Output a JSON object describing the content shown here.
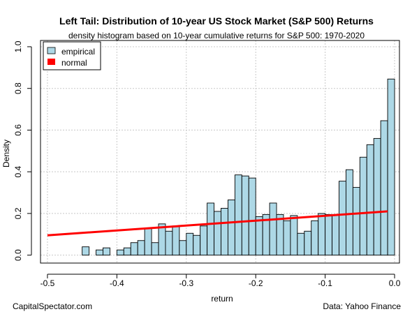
{
  "chart_data": {
    "type": "bar",
    "title": "Left Tail: Distribution of 10-year US Stock Market (S&P 500) Returns",
    "subtitle": "density histogram based on 10-year cumulative returns for S&P 500: 1970-2020",
    "xlabel": "return",
    "ylabel": "Density",
    "xlim": [
      -0.5,
      0.0
    ],
    "ylim": [
      0.0,
      1.0
    ],
    "x_ticks": [
      -0.5,
      -0.4,
      -0.3,
      -0.2,
      -0.1,
      0.0
    ],
    "x_tick_labels": [
      "-0.5",
      "-0.4",
      "-0.3",
      "-0.2",
      "-0.1",
      "0.0"
    ],
    "y_ticks": [
      0.0,
      0.2,
      0.4,
      0.6,
      0.8,
      1.0
    ],
    "y_tick_labels": [
      "0.0",
      "0.2",
      "0.4",
      "0.6",
      "0.8",
      "1.0"
    ],
    "grid": true,
    "legend_position": "top-left",
    "bar_color": "#add8e6",
    "normal_color": "#ff0000",
    "bins": [
      [
        -0.45,
        -0.44,
        0.04
      ],
      [
        -0.44,
        -0.43,
        0.0
      ],
      [
        -0.43,
        -0.42,
        0.025
      ],
      [
        -0.42,
        -0.41,
        0.035
      ],
      [
        -0.41,
        -0.4,
        0.0
      ],
      [
        -0.4,
        -0.39,
        0.025
      ],
      [
        -0.39,
        -0.38,
        0.035
      ],
      [
        -0.38,
        -0.37,
        0.06
      ],
      [
        -0.37,
        -0.36,
        0.07
      ],
      [
        -0.36,
        -0.35,
        0.13
      ],
      [
        -0.35,
        -0.34,
        0.06
      ],
      [
        -0.34,
        -0.33,
        0.15
      ],
      [
        -0.33,
        -0.32,
        0.115
      ],
      [
        -0.32,
        -0.31,
        0.14
      ],
      [
        -0.31,
        -0.3,
        0.07
      ],
      [
        -0.3,
        -0.29,
        0.105
      ],
      [
        -0.29,
        -0.28,
        0.095
      ],
      [
        -0.28,
        -0.27,
        0.14
      ],
      [
        -0.27,
        -0.26,
        0.25
      ],
      [
        -0.26,
        -0.25,
        0.21
      ],
      [
        -0.25,
        -0.24,
        0.225
      ],
      [
        -0.24,
        -0.23,
        0.265
      ],
      [
        -0.23,
        -0.22,
        0.385
      ],
      [
        -0.22,
        -0.21,
        0.38
      ],
      [
        -0.21,
        -0.2,
        0.37
      ],
      [
        -0.2,
        -0.19,
        0.185
      ],
      [
        -0.19,
        -0.18,
        0.195
      ],
      [
        -0.18,
        -0.17,
        0.25
      ],
      [
        -0.17,
        -0.16,
        0.195
      ],
      [
        -0.16,
        -0.15,
        0.165
      ],
      [
        -0.15,
        -0.14,
        0.19
      ],
      [
        -0.14,
        -0.13,
        0.105
      ],
      [
        -0.13,
        -0.12,
        0.115
      ],
      [
        -0.12,
        -0.11,
        0.165
      ],
      [
        -0.11,
        -0.1,
        0.2
      ],
      [
        -0.1,
        -0.09,
        0.195
      ],
      [
        -0.09,
        -0.08,
        0.195
      ],
      [
        -0.08,
        -0.07,
        0.355
      ],
      [
        -0.07,
        -0.06,
        0.41
      ],
      [
        -0.06,
        -0.05,
        0.325
      ],
      [
        -0.05,
        -0.04,
        0.47
      ],
      [
        -0.04,
        -0.03,
        0.53
      ],
      [
        -0.03,
        -0.02,
        0.56
      ],
      [
        -0.02,
        -0.01,
        0.645
      ],
      [
        -0.01,
        0.0,
        0.845
      ]
    ],
    "series": [
      {
        "name": "empirical",
        "type": "histogram"
      },
      {
        "name": "normal",
        "type": "line",
        "x": [
          -0.5,
          -0.01
        ],
        "y": [
          0.095,
          0.21
        ]
      }
    ]
  },
  "footer": {
    "left": "CapitalSpectator.com",
    "right": "Data: Yahoo Finance"
  }
}
